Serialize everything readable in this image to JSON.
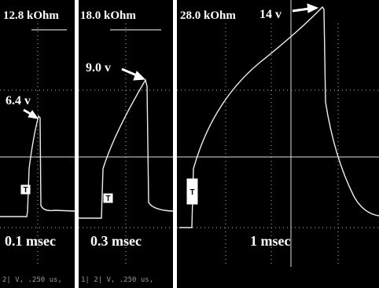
{
  "panels": [
    {
      "resistance": "12.8 kOhm",
      "peak": "6.4 v",
      "duration": "0.1 msec",
      "trigger": "T",
      "footer": "2| V, .250 us,"
    },
    {
      "resistance": "18.0 kOhm",
      "peak": "9.0 v",
      "duration": "0.3 msec",
      "trigger": "T",
      "footer": "1| 2| V, .250 us,"
    },
    {
      "resistance": "28.0 kOhm",
      "peak": "14 v",
      "duration": "1 msec",
      "trigger": "T"
    }
  ]
}
